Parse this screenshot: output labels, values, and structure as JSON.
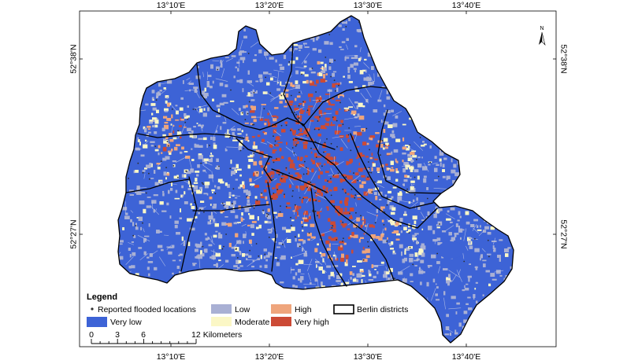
{
  "graticule": {
    "top": [
      "13°10'E",
      "13°20'E",
      "13°30'E",
      "13°40'E"
    ],
    "bottom": [
      "13°10'E",
      "13°20'E",
      "13°30'E",
      "13°40'E"
    ],
    "left": [
      "52°38'N",
      "52°27'N"
    ],
    "right": [
      "52°38'N",
      "52°27'N"
    ]
  },
  "north_arrow": {
    "label": "N",
    "icon": "north-arrow-icon"
  },
  "legend": {
    "title": "Legend",
    "reported": "Reported flooded locations",
    "very_low": "Very low",
    "low": "Low",
    "moderate": "Moderate",
    "high": "High",
    "very_high": "Very high",
    "districts": "Berlin districts"
  },
  "scale_bar": {
    "ticks": [
      "0",
      "3",
      "6",
      "12"
    ],
    "unit": "Kilometers"
  },
  "colors": {
    "very_low": "#3d63d6",
    "low": "#a9b0d4",
    "moderate": "#fbf7c6",
    "high": "#efa57c",
    "very_high": "#cc4a35",
    "district_line": "#000000",
    "flood_dot": "#2d2d2d",
    "road": "#c7cde6"
  }
}
